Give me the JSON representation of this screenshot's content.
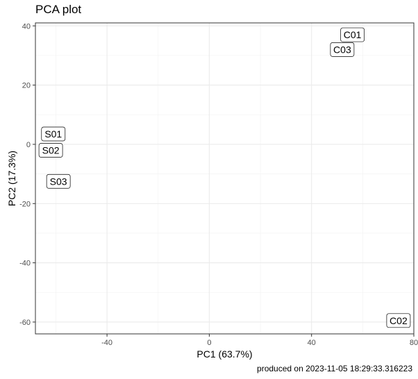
{
  "footer": {
    "text": "produced on 2023-11-05 18:29:33.316223"
  },
  "chart_data": {
    "type": "scatter",
    "title": "PCA plot",
    "xlabel": "PC1 (63.7%)",
    "ylabel": "PC2 (17.3%)",
    "xlim": [
      -68,
      80
    ],
    "ylim": [
      -64,
      41
    ],
    "xticks": [
      -40,
      0,
      40,
      80
    ],
    "yticks": [
      -60,
      -40,
      -20,
      0,
      20,
      40
    ],
    "grid": true,
    "points": [
      {
        "label": "C01",
        "x": 56,
        "y": 37
      },
      {
        "label": "C03",
        "x": 52,
        "y": 32
      },
      {
        "label": "S01",
        "x": -61,
        "y": 3.5
      },
      {
        "label": "S02",
        "x": -62,
        "y": -2
      },
      {
        "label": "S03",
        "x": -59,
        "y": -12.5
      },
      {
        "label": "C02",
        "x": 74,
        "y": -59.5
      }
    ]
  }
}
